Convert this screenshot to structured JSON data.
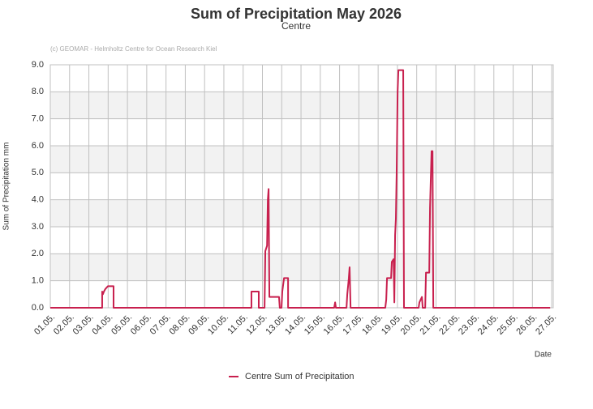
{
  "chart_data": {
    "type": "line",
    "title": "Sum of Precipitation May 2026",
    "subtitle": "Centre",
    "credit": "(c) GEOMAR - Helmholtz Centre for Ocean Research Kiel",
    "y_label": "Sum of Precipitation mm",
    "x_label": "Date",
    "xlim": [
      1,
      27.08
    ],
    "ylim": [
      0,
      9
    ],
    "grid": true,
    "xticks": [
      {
        "value": 1,
        "label": "01.05."
      },
      {
        "value": 2,
        "label": "02.05."
      },
      {
        "value": 3,
        "label": "03.05."
      },
      {
        "value": 4,
        "label": "04.05."
      },
      {
        "value": 5,
        "label": "05.05."
      },
      {
        "value": 6,
        "label": "06.05."
      },
      {
        "value": 7,
        "label": "07.05."
      },
      {
        "value": 8,
        "label": "08.05."
      },
      {
        "value": 9,
        "label": "09.05."
      },
      {
        "value": 10,
        "label": "10.05."
      },
      {
        "value": 11,
        "label": "11.05."
      },
      {
        "value": 12,
        "label": "12.05."
      },
      {
        "value": 13,
        "label": "13.05."
      },
      {
        "value": 14,
        "label": "14.05."
      },
      {
        "value": 15,
        "label": "15.05."
      },
      {
        "value": 16,
        "label": "16.05."
      },
      {
        "value": 17,
        "label": "17.05."
      },
      {
        "value": 18,
        "label": "18.05."
      },
      {
        "value": 19,
        "label": "19.05."
      },
      {
        "value": 20,
        "label": "20.05."
      },
      {
        "value": 21,
        "label": "21.05."
      },
      {
        "value": 22,
        "label": "22.05."
      },
      {
        "value": 23,
        "label": "23.05."
      },
      {
        "value": 24,
        "label": "24.05."
      },
      {
        "value": 25,
        "label": "25.05."
      },
      {
        "value": 26,
        "label": "26.05."
      },
      {
        "value": 27,
        "label": "27.05."
      }
    ],
    "yticks": [
      {
        "value": 0,
        "label": "0.0"
      },
      {
        "value": 1,
        "label": "1.0"
      },
      {
        "value": 2,
        "label": "2.0"
      },
      {
        "value": 3,
        "label": "3.0"
      },
      {
        "value": 4,
        "label": "4.0"
      },
      {
        "value": 5,
        "label": "5.0"
      },
      {
        "value": 6,
        "label": "6.0"
      },
      {
        "value": 7,
        "label": "7.0"
      },
      {
        "value": 8,
        "label": "8.0"
      },
      {
        "value": 9,
        "label": "9.0"
      }
    ],
    "x": [
      1.0,
      3.69,
      3.69,
      3.73,
      3.78,
      3.86,
      3.99,
      4.28,
      4.28,
      11.43,
      11.43,
      11.81,
      11.81,
      12.11,
      12.15,
      12.24,
      12.28,
      12.32,
      12.36,
      12.86,
      12.9,
      12.99,
      13.03,
      13.12,
      13.33,
      13.33,
      15.72,
      15.77,
      15.81,
      16.36,
      16.4,
      16.48,
      16.52,
      16.57,
      18.37,
      18.42,
      18.46,
      18.67,
      18.71,
      18.8,
      18.84,
      18.88,
      18.92,
      18.96,
      19.01,
      19.05,
      19.3,
      19.34,
      20.1,
      20.14,
      20.27,
      20.31,
      20.44,
      20.48,
      20.65,
      20.69,
      20.77,
      20.82,
      20.86,
      26.92
    ],
    "series": [
      {
        "name": "Centre Sum of Precipitation",
        "color": "#c8204e",
        "values": [
          0,
          0,
          0.6,
          0.5,
          0.6,
          0.7,
          0.8,
          0.8,
          0,
          0,
          0.6,
          0.6,
          0,
          0,
          2.1,
          2.3,
          4.0,
          4.4,
          0.4,
          0.4,
          0,
          0,
          0.6,
          1.1,
          1.1,
          0,
          0,
          0.2,
          0,
          0,
          0.5,
          1.1,
          1.5,
          0,
          0,
          0.3,
          1.1,
          1.1,
          1.7,
          1.8,
          0.2,
          2.7,
          3.3,
          5.0,
          8.0,
          8.8,
          8.8,
          0,
          0,
          0.2,
          0.4,
          0,
          0,
          1.3,
          1.3,
          3.7,
          5.8,
          5.8,
          0,
          0
        ]
      }
    ]
  }
}
